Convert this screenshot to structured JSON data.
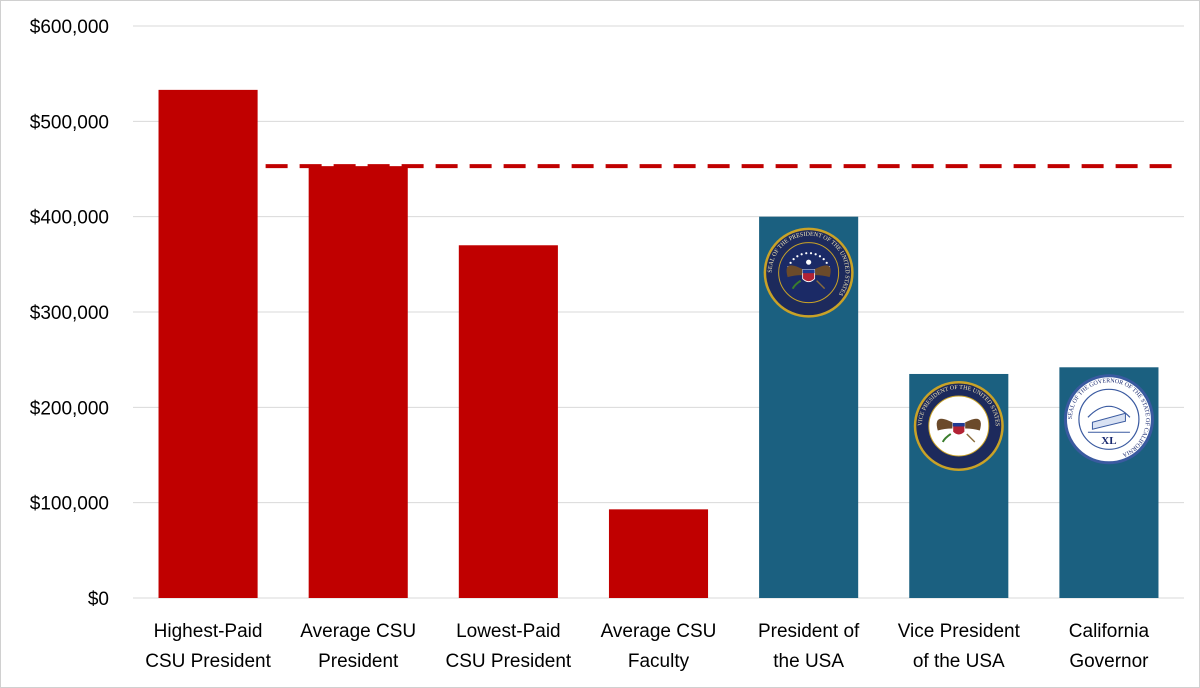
{
  "chart_data": {
    "type": "bar",
    "title": "",
    "xlabel": "",
    "ylabel": "",
    "ylim": [
      0,
      600000
    ],
    "ytick_step": 100000,
    "ytick_labels": [
      "$0",
      "$100,000",
      "$200,000",
      "$300,000",
      "$400,000",
      "$500,000",
      "$600,000"
    ],
    "grid": true,
    "categories": [
      [
        "Highest-Paid",
        "CSU President"
      ],
      [
        "Average CSU",
        "President"
      ],
      [
        "Lowest-Paid",
        "CSU President"
      ],
      [
        "Average CSU",
        "Faculty"
      ],
      [
        "President of",
        "the USA"
      ],
      [
        "Vice President",
        "of the USA"
      ],
      [
        "California",
        "Governor"
      ]
    ],
    "values": [
      533000,
      453000,
      370000,
      93000,
      400000,
      235000,
      242000
    ],
    "bar_colors": [
      "#c00000",
      "#c00000",
      "#c00000",
      "#c00000",
      "#1b6080",
      "#1b6080",
      "#1b6080"
    ],
    "reference_line": {
      "value": 453000,
      "style": "dashed",
      "color": "#c00000"
    },
    "seals": [
      {
        "category_index": 4,
        "icon": "presidential-seal-icon",
        "ring_text": "SEAL OF THE PRESIDENT OF THE UNITED STATES"
      },
      {
        "category_index": 5,
        "icon": "vice-presidential-seal-icon",
        "ring_text": "VICE PRESIDENT OF THE UNITED STATES"
      },
      {
        "category_index": 6,
        "icon": "california-governor-seal-icon",
        "ring_text": "SEAL OF THE GOVERNOR OF THE STATE OF CALIFORNIA",
        "center_text": "XL"
      }
    ]
  }
}
